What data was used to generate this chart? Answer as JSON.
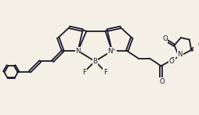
{
  "bg_color": "#f5f0e6",
  "line_color": "#1a1a2e",
  "lw": 1.3,
  "fs": 6.2,
  "fig_w": 2.55,
  "fig_h": 1.47,
  "dpi": 100,
  "xlim": [
    0,
    10.2
  ],
  "ylim": [
    0.5,
    6.5
  ]
}
